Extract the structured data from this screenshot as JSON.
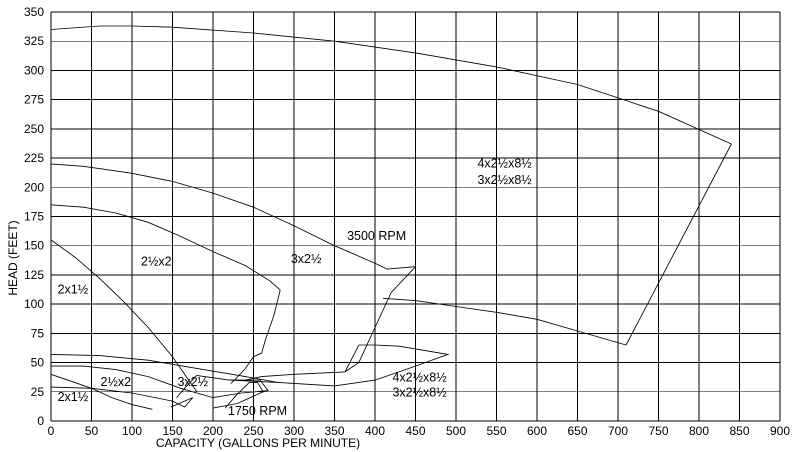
{
  "chart_data": {
    "type": "line",
    "title": "",
    "xlabel": "CAPACITY (GALLONS PER MINUTE)",
    "ylabel": "HEAD (FEET)",
    "xlim": [
      0,
      900
    ],
    "ylim": [
      0,
      350
    ],
    "x_ticks": [
      0,
      50,
      100,
      150,
      200,
      250,
      300,
      350,
      400,
      450,
      500,
      550,
      600,
      650,
      700,
      750,
      800,
      850,
      900
    ],
    "y_ticks": [
      0,
      25,
      50,
      75,
      100,
      125,
      150,
      175,
      200,
      225,
      250,
      275,
      300,
      325,
      350
    ],
    "grid": true,
    "series": [
      {
        "x": [
          0,
          60,
          100,
          150,
          250,
          350,
          450,
          550,
          650,
          750,
          840
        ],
        "y": [
          335,
          338,
          338,
          337,
          332,
          325,
          315,
          303,
          288,
          265,
          237
        ]
      },
      {
        "x": [
          840,
          710
        ],
        "y": [
          237,
          65
        ]
      },
      {
        "x": [
          710,
          650,
          600,
          550,
          500,
          450,
          410
        ],
        "y": [
          65,
          77,
          87,
          93,
          98,
          103,
          105
        ]
      },
      {
        "x": [
          0,
          40,
          100,
          150,
          200,
          250,
          300,
          350,
          400,
          415,
          450
        ],
        "y": [
          220,
          218,
          212,
          205,
          195,
          183,
          167,
          150,
          135,
          130,
          132
        ]
      },
      {
        "x": [
          450,
          420,
          400,
          380,
          363
        ],
        "y": [
          132,
          110,
          80,
          50,
          42
        ]
      },
      {
        "x": [
          0,
          40,
          80,
          120,
          160,
          200,
          240,
          270,
          283
        ],
        "y": [
          185,
          183,
          178,
          170,
          158,
          145,
          133,
          120,
          112
        ]
      },
      {
        "x": [
          283,
          275,
          265,
          260,
          250,
          240,
          228,
          222
        ],
        "y": [
          112,
          90,
          70,
          58,
          55,
          45,
          36,
          32
        ]
      },
      {
        "x": [
          0,
          30,
          60,
          90,
          120,
          150,
          170,
          180
        ],
        "y": [
          155,
          140,
          122,
          102,
          80,
          55,
          35,
          25
        ]
      },
      {
        "x": [
          0,
          60,
          120,
          180,
          240,
          280
        ],
        "y": [
          57,
          56,
          52,
          45,
          38,
          33
        ]
      },
      {
        "x": [
          0,
          40,
          80,
          120,
          160,
          200
        ],
        "y": [
          47,
          47,
          44,
          38,
          28,
          20
        ]
      },
      {
        "x": [
          200,
          235,
          268,
          258,
          240,
          220,
          200,
          180,
          165,
          155
        ],
        "y": [
          20,
          24,
          26,
          35,
          35,
          35,
          37,
          39,
          28,
          20
        ]
      },
      {
        "x": [
          0,
          25,
          50,
          75,
          100,
          125
        ],
        "y": [
          40,
          34,
          28,
          20,
          14,
          10
        ]
      },
      {
        "x": [
          0,
          50,
          100,
          150,
          165,
          175,
          165,
          148
        ],
        "y": [
          29,
          28,
          24,
          17,
          12,
          20,
          17,
          12
        ]
      },
      {
        "x": [
          200,
          230,
          262,
          255,
          245,
          230,
          215
        ],
        "y": [
          11,
          15,
          25,
          33,
          33,
          23,
          11
        ]
      },
      {
        "x": [
          220,
          280,
          350,
          400,
          450,
          490,
          430,
          400,
          380,
          363,
          300,
          260,
          240
        ],
        "y": [
          35,
          33,
          30,
          35,
          47,
          57,
          64,
          65,
          65,
          42,
          40,
          38,
          35
        ]
      }
    ],
    "region_labels": [
      {
        "text": "4x2½x8½",
        "x": 560,
        "y": 217
      },
      {
        "text": "3x2½x8½",
        "x": 560,
        "y": 203
      },
      {
        "text": "3500 RPM",
        "x": 402,
        "y": 155
      },
      {
        "text": "3x2½",
        "x": 315,
        "y": 135
      },
      {
        "text": "2½x2",
        "x": 130,
        "y": 133
      },
      {
        "text": "2x1½",
        "x": 27,
        "y": 109
      },
      {
        "text": "4x2½x8½",
        "x": 455,
        "y": 34
      },
      {
        "text": "3x2½x8½",
        "x": 455,
        "y": 21
      },
      {
        "text": "3x2½",
        "x": 175,
        "y": 30
      },
      {
        "text": "2½x2",
        "x": 80,
        "y": 30
      },
      {
        "text": "2x1½",
        "x": 27,
        "y": 17
      },
      {
        "text": "1750 RPM",
        "x": 255,
        "y": 5
      }
    ]
  }
}
